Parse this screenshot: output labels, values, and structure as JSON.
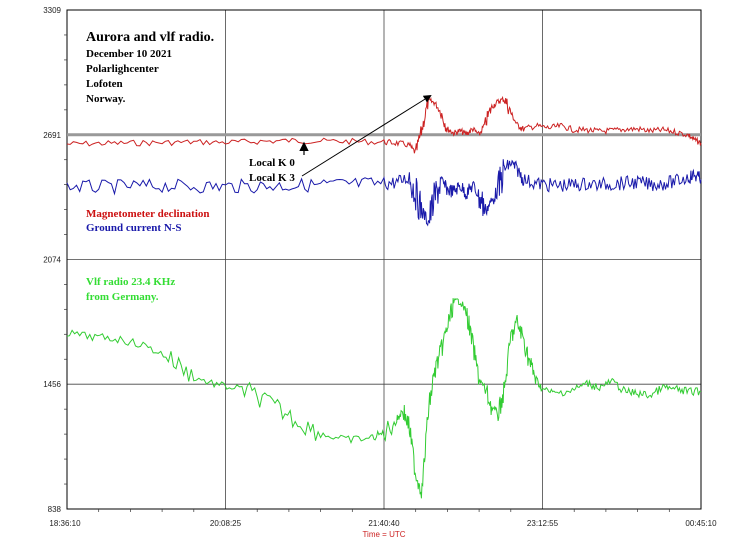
{
  "chart_data": {
    "type": "line",
    "xlabel": "Time = UTC",
    "x_ticks": [
      "18:36:10",
      "20:08:25",
      "21:40:40",
      "23:12:55",
      "00:45:10"
    ],
    "y_ticks": [
      838,
      1456,
      2074,
      2691,
      3309
    ],
    "ylim": [
      838,
      3309
    ],
    "grid": true,
    "reference_line": 2691,
    "annotations": {
      "title": "Aurora and vlf radio.",
      "lines": [
        "December 10 2021",
        "Polarlighcenter",
        "Lofoten",
        "Norway."
      ],
      "local_k0": "Local K 0",
      "local_k3": "Local K 3",
      "series1_label": "Magnetometer declination",
      "series2_label": "Ground current N-S",
      "series3_label_line1": "Vlf radio 23.4 KHz",
      "series3_label_line2": "from Germany."
    },
    "series": [
      {
        "name": "Magnetometer declination",
        "color": "#cc2222",
        "points": [
          [
            0,
            2645
          ],
          [
            5,
            2648
          ],
          [
            10,
            2650
          ],
          [
            15,
            2652
          ],
          [
            20,
            2655
          ],
          [
            25,
            2653
          ],
          [
            30,
            2658
          ],
          [
            35,
            2662
          ],
          [
            40,
            2660
          ],
          [
            45,
            2658
          ],
          [
            50,
            2655
          ],
          [
            52,
            2650
          ],
          [
            54,
            2640
          ],
          [
            55,
            2600
          ],
          [
            56,
            2720
          ],
          [
            57,
            2860
          ],
          [
            58,
            2850
          ],
          [
            59,
            2800
          ],
          [
            60,
            2720
          ],
          [
            61,
            2700
          ],
          [
            62,
            2710
          ],
          [
            63,
            2695
          ],
          [
            64,
            2720
          ],
          [
            65,
            2690
          ],
          [
            66,
            2750
          ],
          [
            67,
            2830
          ],
          [
            68,
            2855
          ],
          [
            69,
            2870
          ],
          [
            70,
            2800
          ],
          [
            71,
            2740
          ],
          [
            72,
            2720
          ],
          [
            74,
            2735
          ],
          [
            76,
            2725
          ],
          [
            78,
            2735
          ],
          [
            80,
            2715
          ],
          [
            82,
            2715
          ],
          [
            84,
            2708
          ],
          [
            86,
            2712
          ],
          [
            88,
            2718
          ],
          [
            90,
            2720
          ],
          [
            92,
            2710
          ],
          [
            94,
            2715
          ],
          [
            96,
            2705
          ],
          [
            98,
            2690
          ],
          [
            99,
            2665
          ],
          [
            100,
            2650
          ]
        ]
      },
      {
        "name": "Ground current N-S",
        "color": "#1a1aaa",
        "points": [
          [
            0,
            2435
          ],
          [
            5,
            2432
          ],
          [
            10,
            2436
          ],
          [
            15,
            2438
          ],
          [
            20,
            2436
          ],
          [
            25,
            2435
          ],
          [
            30,
            2437
          ],
          [
            35,
            2440
          ],
          [
            40,
            2443
          ],
          [
            45,
            2447
          ],
          [
            50,
            2450
          ],
          [
            52,
            2455
          ],
          [
            54,
            2480
          ],
          [
            55,
            2400
          ],
          [
            56,
            2310
          ],
          [
            57,
            2260
          ],
          [
            58,
            2380
          ],
          [
            59,
            2460
          ],
          [
            60,
            2420
          ],
          [
            61,
            2410
          ],
          [
            62,
            2440
          ],
          [
            63,
            2400
          ],
          [
            64,
            2440
          ],
          [
            65,
            2390
          ],
          [
            66,
            2320
          ],
          [
            67,
            2360
          ],
          [
            68,
            2420
          ],
          [
            69,
            2520
          ],
          [
            70,
            2550
          ],
          [
            71,
            2520
          ],
          [
            72,
            2470
          ],
          [
            74,
            2450
          ],
          [
            76,
            2442
          ],
          [
            78,
            2440
          ],
          [
            80,
            2444
          ],
          [
            82,
            2448
          ],
          [
            84,
            2443
          ],
          [
            86,
            2448
          ],
          [
            88,
            2452
          ],
          [
            90,
            2455
          ],
          [
            92,
            2445
          ],
          [
            94,
            2450
          ],
          [
            96,
            2460
          ],
          [
            98,
            2480
          ],
          [
            99,
            2492
          ],
          [
            100,
            2470
          ]
        ]
      },
      {
        "name": "Vlf radio 23.4 KHz",
        "color": "#33cc33",
        "points": [
          [
            0,
            1710
          ],
          [
            4,
            1690
          ],
          [
            8,
            1680
          ],
          [
            12,
            1650
          ],
          [
            16,
            1590
          ],
          [
            20,
            1490
          ],
          [
            24,
            1450
          ],
          [
            28,
            1430
          ],
          [
            32,
            1360
          ],
          [
            36,
            1280
          ],
          [
            40,
            1210
          ],
          [
            44,
            1180
          ],
          [
            48,
            1190
          ],
          [
            50,
            1215
          ],
          [
            52,
            1280
          ],
          [
            53,
            1330
          ],
          [
            54,
            1240
          ],
          [
            55,
            1010
          ],
          [
            56,
            930
          ],
          [
            57,
            1330
          ],
          [
            58,
            1520
          ],
          [
            59,
            1620
          ],
          [
            60,
            1740
          ],
          [
            61,
            1860
          ],
          [
            62,
            1870
          ],
          [
            63,
            1810
          ],
          [
            64,
            1650
          ],
          [
            65,
            1480
          ],
          [
            66,
            1430
          ],
          [
            67,
            1340
          ],
          [
            68,
            1310
          ],
          [
            69,
            1430
          ],
          [
            70,
            1690
          ],
          [
            71,
            1760
          ],
          [
            72,
            1680
          ],
          [
            73,
            1560
          ],
          [
            74,
            1480
          ],
          [
            75,
            1430
          ],
          [
            77,
            1410
          ],
          [
            80,
            1430
          ],
          [
            82,
            1460
          ],
          [
            84,
            1440
          ],
          [
            86,
            1470
          ],
          [
            88,
            1420
          ],
          [
            90,
            1410
          ],
          [
            92,
            1400
          ],
          [
            94,
            1440
          ],
          [
            96,
            1430
          ],
          [
            98,
            1420
          ],
          [
            100,
            1420
          ]
        ]
      }
    ]
  }
}
